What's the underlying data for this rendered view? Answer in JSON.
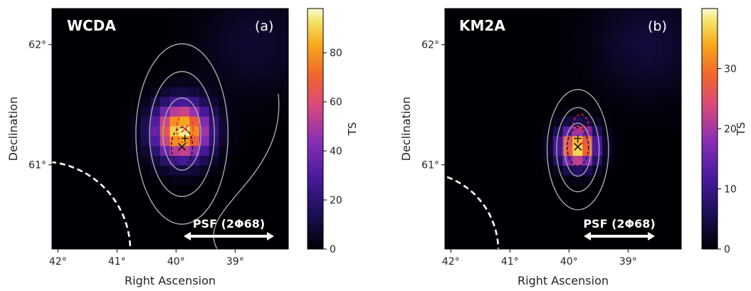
{
  "chart_data": [
    {
      "type": "heatmap",
      "title": "WCDA",
      "tag": "(a)",
      "xlabel": "Right Ascension",
      "ylabel": "Declination",
      "x_ticks": [
        "42°",
        "41°",
        "40°",
        "39°"
      ],
      "x_tick_values": [
        42,
        41,
        40,
        39
      ],
      "y_ticks": [
        "62°",
        "61°"
      ],
      "y_tick_values": [
        62,
        61
      ],
      "xlim": [
        42.1,
        38.1
      ],
      "ylim": [
        60.3,
        62.3
      ],
      "colorbar": {
        "label": "TS",
        "ticks": [
          "0",
          "20",
          "40",
          "60",
          "80"
        ],
        "tick_values": [
          0,
          20,
          40,
          60,
          80
        ],
        "range": [
          0,
          98
        ]
      },
      "peak": {
        "ra": 39.9,
        "dec": 61.28,
        "value": 96
      },
      "markers": [
        {
          "symbol": "x",
          "color": "#e8322c",
          "ra": 39.85,
          "dec": 61.3
        },
        {
          "symbol": "x",
          "color": "#111111",
          "ra": 39.9,
          "dec": 61.15
        },
        {
          "symbol": "+",
          "color": "#111111",
          "ra": 39.85,
          "dec": 61.22
        }
      ],
      "psf_label": "PSF (2Φ68)",
      "grid": false
    },
    {
      "type": "heatmap",
      "title": "KM2A",
      "tag": "(b)",
      "xlabel": "Right Ascension",
      "ylabel": "Declination",
      "x_ticks": [
        "42°",
        "41°",
        "40°",
        "39°"
      ],
      "x_tick_values": [
        42,
        41,
        40,
        39
      ],
      "y_ticks": [
        "62°",
        "61°"
      ],
      "y_tick_values": [
        62,
        61
      ],
      "xlim": [
        42.1,
        38.1
      ],
      "ylim": [
        60.3,
        62.3
      ],
      "colorbar": {
        "label": "TS",
        "ticks": [
          "0",
          "10",
          "20",
          "30"
        ],
        "tick_values": [
          0,
          10,
          20,
          30
        ],
        "range": [
          0,
          40
        ]
      },
      "peak": {
        "ra": 39.85,
        "dec": 61.15,
        "value": 39
      },
      "markers": [
        {
          "symbol": "x",
          "color": "#e8322c",
          "ra": 39.8,
          "dec": 61.3
        },
        {
          "symbol": "x",
          "color": "#111111",
          "ra": 39.85,
          "dec": 61.15
        },
        {
          "symbol": "+",
          "color": "#111111",
          "ra": 39.85,
          "dec": 61.22
        }
      ],
      "psf_label": "PSF (2Φ68)",
      "grid": false
    }
  ]
}
